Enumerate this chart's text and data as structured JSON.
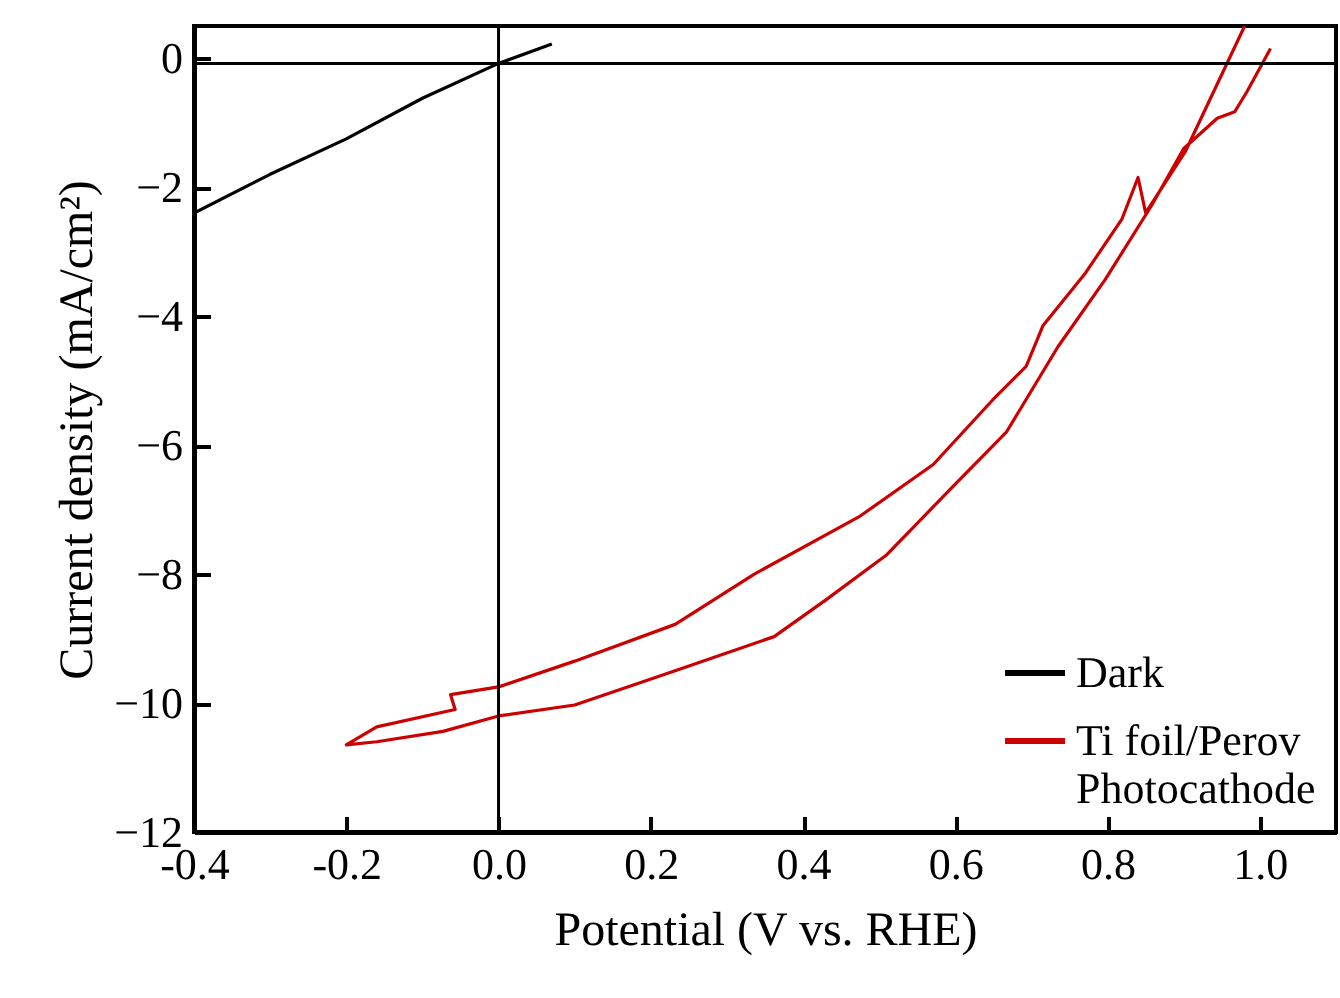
{
  "chart_data": {
    "type": "line",
    "xlabel": "Potential (V vs. RHE)",
    "ylabel": "Current density (mA/cm²)",
    "xlim": [
      -0.4,
      1.1
    ],
    "xticks": [
      {
        "value": -0.4,
        "label": "-0.4"
      },
      {
        "value": -0.2,
        "label": "-0.2"
      },
      {
        "value": 0,
        "label": "0.0"
      },
      {
        "value": 0.2,
        "label": "0.2"
      },
      {
        "value": 0.4,
        "label": "0.4"
      },
      {
        "value": 0.6,
        "label": "0.6"
      },
      {
        "value": 0.8,
        "label": "0.8"
      },
      {
        "value": 1,
        "label": "1.0"
      }
    ],
    "ylim": [
      -12,
      0.5
    ],
    "yticks": [
      -12,
      -10,
      -8,
      -6,
      -4,
      -2,
      0
    ],
    "grid": false,
    "legend": "bottom right",
    "marker": "none",
    "line_style": "solid",
    "ref_lines": [
      {
        "axis": "y",
        "value": -0.08,
        "color": "#000000"
      },
      {
        "axis": "x",
        "value": 0,
        "color": "#000000"
      }
    ],
    "series": [
      {
        "name": "Dark",
        "color": "#000000",
        "x": [
          -0.4,
          -0.3,
          -0.2,
          -0.1,
          0,
          0.07
        ],
        "values": [
          -2.4,
          -1.8,
          -1.25,
          -0.62,
          -0.08,
          0.22
        ]
      },
      {
        "name": "Ti foil/Perov Photocathode",
        "color": "#cc0000",
        "x": [
          1.014,
          0.983,
          0.967,
          0.944,
          0.9,
          0.858,
          0.797,
          0.735,
          0.667,
          0.597,
          0.51,
          0.43,
          0.362,
          0.232,
          0.1,
          0,
          -0.073,
          -0.16,
          -0.2,
          -0.16,
          -0.057,
          -0.063,
          0,
          0.1,
          0.232,
          0.336,
          0.475,
          0.571,
          0.649,
          0.693,
          0.715,
          0.771,
          0.819,
          0.84,
          0.85,
          0.902,
          0.98
        ],
        "values": [
          0.15,
          -0.52,
          -0.83,
          -0.93,
          -1.4,
          -2.28,
          -3.43,
          -4.47,
          -5.8,
          -6.64,
          -7.7,
          -8.4,
          -8.97,
          -9.5,
          -10.03,
          -10.2,
          -10.44,
          -10.6,
          -10.65,
          -10.37,
          -10.1,
          -9.87,
          -9.75,
          -9.35,
          -8.78,
          -8.0,
          -7.1,
          -6.3,
          -5.3,
          -4.78,
          -4.15,
          -3.33,
          -2.49,
          -1.85,
          -2.4,
          -1.45,
          0.5
        ]
      }
    ]
  }
}
